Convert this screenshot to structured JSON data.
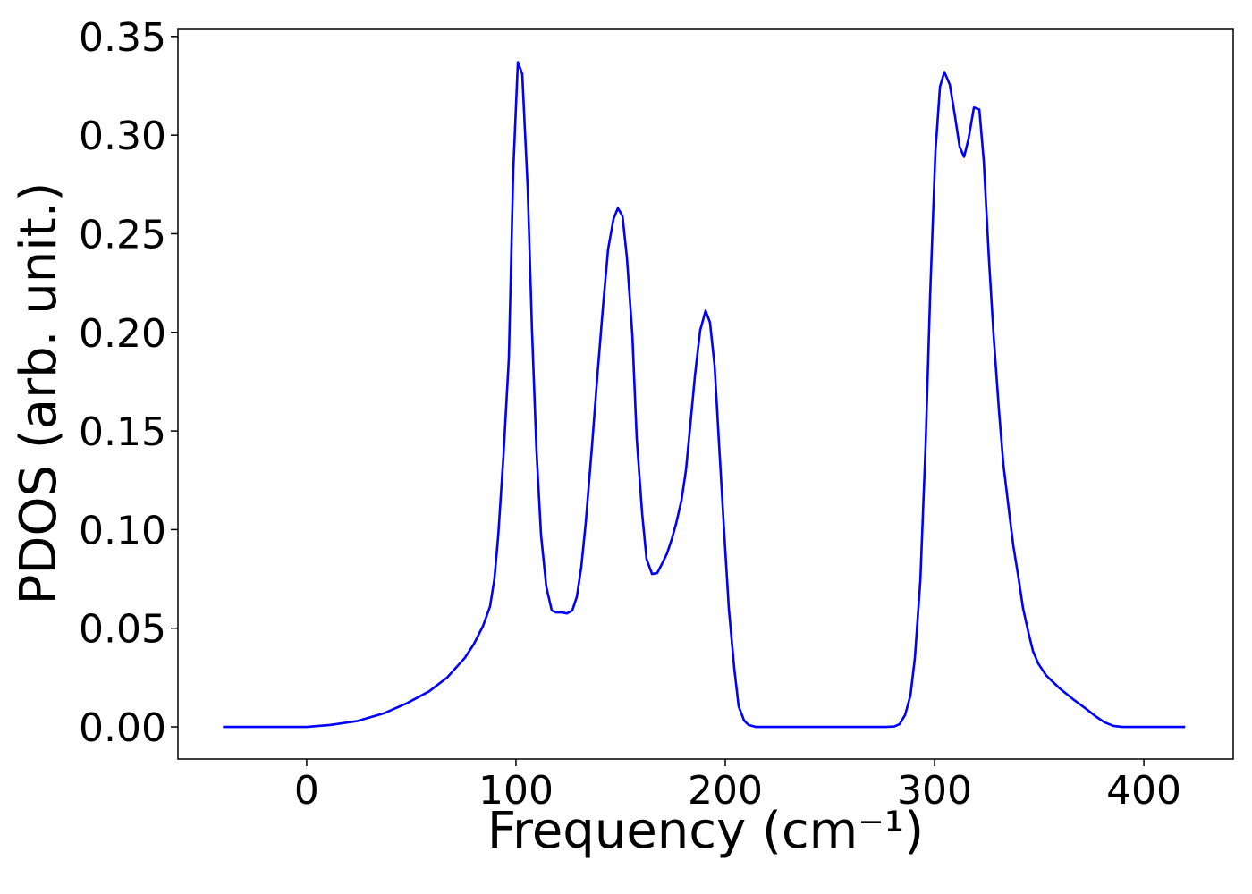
{
  "chart_data": {
    "type": "line",
    "xlabel": "Frequency (cm⁻¹)",
    "ylabel": "PDOS (arb. unit.)",
    "color": "#0000ff",
    "x": [
      -40,
      0,
      11.5,
      24.4,
      37.2,
      47.9,
      58.5,
      67.1,
      75.6,
      79.9,
      84.2,
      87.6,
      89.7,
      91.5,
      94,
      96.6,
      98.7,
      100.9,
      103,
      105.6,
      107.7,
      109.8,
      112,
      114.5,
      117.1,
      119.2,
      121.8,
      124.4,
      126.9,
      129.1,
      131.2,
      133.3,
      136.3,
      138.9,
      141.5,
      144,
      146.6,
      148.7,
      150.9,
      153,
      155.6,
      157.7,
      160.3,
      162.4,
      165,
      167.5,
      169.7,
      172.2,
      174.4,
      176.5,
      179.1,
      181.2,
      183.3,
      185.5,
      188,
      190.6,
      192.7,
      194.9,
      197,
      199.6,
      201.7,
      204.3,
      206.4,
      209,
      211.1,
      214.5,
      276.5,
      280.8,
      283.3,
      285.9,
      288.5,
      290.6,
      293.2,
      295.7,
      297.9,
      300.4,
      302.6,
      304.7,
      307.3,
      309.4,
      312,
      314.1,
      316.2,
      318.8,
      321.4,
      323.5,
      326,
      328.2,
      330.8,
      332.9,
      335.5,
      337.6,
      340.2,
      342.3,
      344.9,
      347,
      349.6,
      353.4,
      359.8,
      366.2,
      372.6,
      376.9,
      381.2,
      385.5,
      389.7,
      419.7
    ],
    "values": [
      0,
      0,
      0.001,
      0.003,
      0.007,
      0.012,
      0.018,
      0.025,
      0.035,
      0.042,
      0.051,
      0.061,
      0.075,
      0.0966,
      0.137,
      0.187,
      0.282,
      0.337,
      0.331,
      0.273,
      0.2,
      0.14,
      0.097,
      0.071,
      0.059,
      0.058,
      0.058,
      0.0575,
      0.059,
      0.066,
      0.081,
      0.103,
      0.142,
      0.178,
      0.212,
      0.242,
      0.2575,
      0.263,
      0.259,
      0.238,
      0.199,
      0.146,
      0.108,
      0.085,
      0.0775,
      0.078,
      0.0825,
      0.088,
      0.095,
      0.103,
      0.115,
      0.13,
      0.153,
      0.178,
      0.201,
      0.211,
      0.205,
      0.183,
      0.144,
      0.0965,
      0.06,
      0.0295,
      0.0104,
      0.0032,
      0.001,
      0,
      0,
      0.0002,
      0.0014,
      0.006,
      0.016,
      0.035,
      0.074,
      0.142,
      0.219,
      0.2915,
      0.3246,
      0.332,
      0.3255,
      0.312,
      0.294,
      0.289,
      0.298,
      0.314,
      0.313,
      0.287,
      0.237,
      0.1986,
      0.16,
      0.133,
      0.11,
      0.092,
      0.075,
      0.06,
      0.0476,
      0.0385,
      0.032,
      0.026,
      0.0195,
      0.014,
      0.009,
      0.0054,
      0.0023,
      0.0005,
      0,
      0
    ],
    "xlim": [
      -61.5,
      442.7
    ],
    "ylim": [
      -0.0163,
      0.354
    ],
    "xticks": [
      0,
      100,
      200,
      300,
      400
    ],
    "yticks": [
      {
        "value": 0,
        "label": "0.00"
      },
      {
        "value": 0.05,
        "label": "0.05"
      },
      {
        "value": 0.1,
        "label": "0.10"
      },
      {
        "value": 0.15,
        "label": "0.15"
      },
      {
        "value": 0.2,
        "label": "0.20"
      },
      {
        "value": 0.25,
        "label": "0.25"
      },
      {
        "value": 0.3,
        "label": "0.30"
      },
      {
        "value": 0.35,
        "label": "0.35"
      }
    ]
  }
}
